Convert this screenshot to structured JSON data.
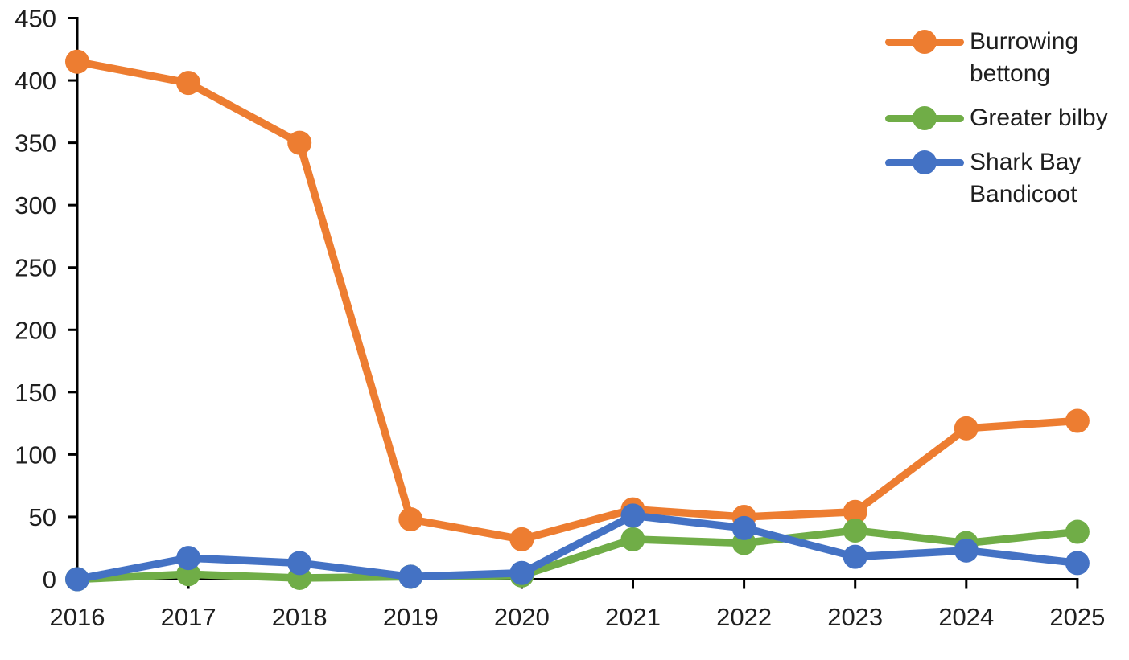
{
  "chart_data": {
    "type": "line",
    "title": "",
    "xlabel": "",
    "ylabel": "",
    "x_categories": [
      "2016",
      "2017",
      "2018",
      "2019",
      "2020",
      "2021",
      "2022",
      "2023",
      "2024",
      "2025"
    ],
    "series": [
      {
        "name": "Burrowing bettong",
        "color": "#ED7D31",
        "values": [
          415,
          398,
          350,
          48,
          32,
          56,
          50,
          54,
          121,
          127
        ]
      },
      {
        "name": "Greater bilby",
        "color": "#70AD47",
        "values": [
          0,
          4,
          1,
          2,
          3,
          32,
          29,
          39,
          29,
          38
        ]
      },
      {
        "name": "Shark Bay Bandicoot",
        "color": "#4472C4",
        "values": [
          0,
          17,
          13,
          2,
          5,
          51,
          41,
          18,
          23,
          13
        ]
      }
    ],
    "ylim": [
      0,
      450
    ],
    "yticks": [
      0,
      50,
      100,
      150,
      200,
      250,
      300,
      350,
      400,
      450
    ],
    "grid": false,
    "legend_position": "top-right",
    "marker_style": "circle",
    "axis_color": "#000000",
    "label_color": "#1f1f1f"
  }
}
